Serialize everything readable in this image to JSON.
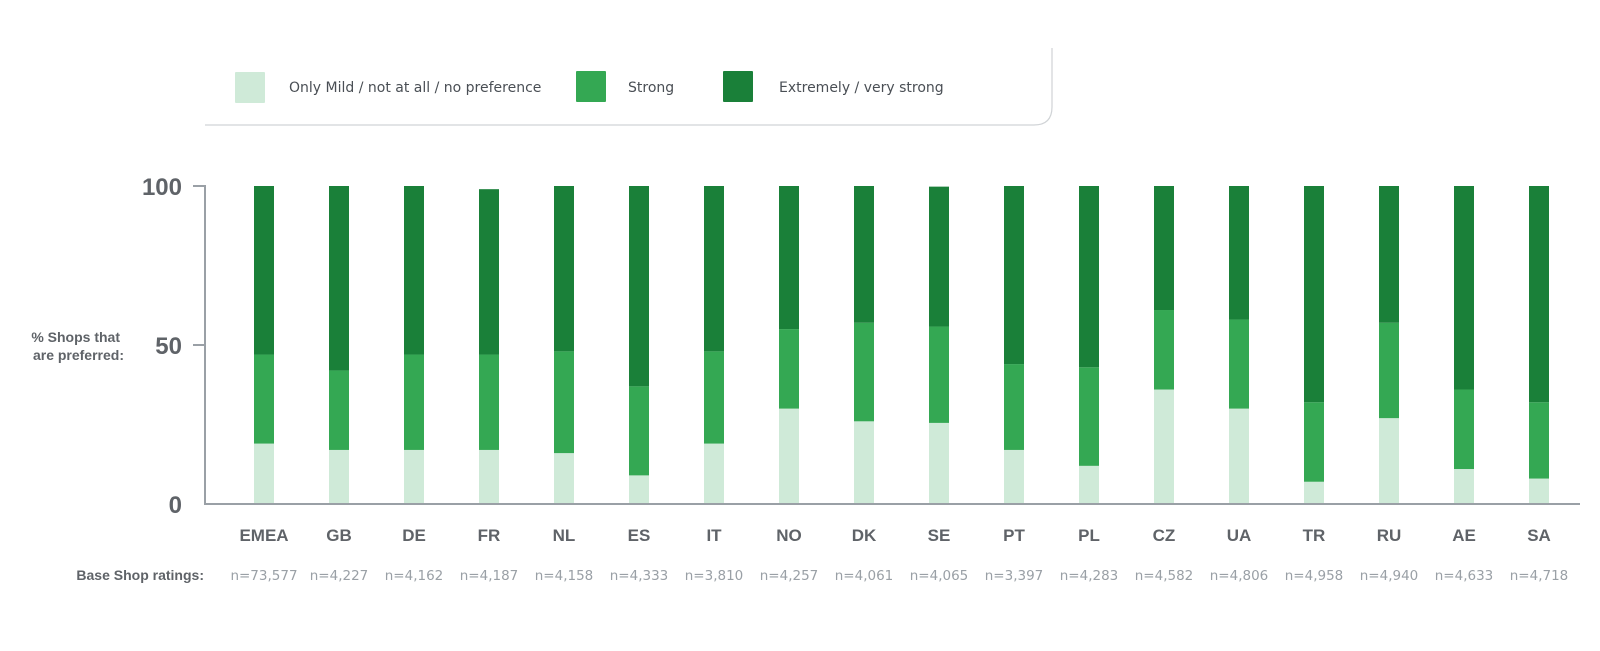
{
  "legend": {
    "items": [
      {
        "label": "Only Mild / not at all / no preference",
        "color": "#cfead8"
      },
      {
        "label": "Strong",
        "color": "#34a853"
      },
      {
        "label": "Extremely / very strong",
        "color": "#1a8039"
      }
    ]
  },
  "base_label": "Base Shop ratings:",
  "chart_data": {
    "type": "bar",
    "stacked": true,
    "ylabel": "% Shops that are preferred:",
    "ylabel_lines": [
      "% Shops that",
      "are preferred:"
    ],
    "ylim": [
      0,
      100
    ],
    "yticks": [
      "0",
      "50",
      "100"
    ],
    "categories": [
      "EMEA",
      "GB",
      "DE",
      "FR",
      "NL",
      "ES",
      "IT",
      "NO",
      "DK",
      "SE",
      "PT",
      "PL",
      "CZ",
      "UA",
      "TR",
      "RU",
      "AE",
      "SA"
    ],
    "series": [
      {
        "name": "Only Mild / not at all / no preference",
        "color": "#cfead8",
        "values": [
          19,
          17,
          17,
          17,
          16,
          9,
          19,
          30,
          26,
          25.5,
          17,
          12,
          36,
          30,
          7,
          27,
          11,
          8
        ]
      },
      {
        "name": "Strong",
        "color": "#34a853",
        "values": [
          28,
          25,
          30,
          30,
          32,
          28,
          29,
          25,
          31,
          30.3,
          27,
          31,
          25,
          28,
          25,
          30,
          25,
          24
        ]
      },
      {
        "name": "Extremely / very strong",
        "color": "#1a8039",
        "values": [
          53,
          58,
          53,
          52,
          52,
          63,
          52,
          45,
          43,
          44,
          56,
          57,
          39,
          42,
          68,
          43,
          64,
          68
        ]
      }
    ],
    "base_counts": [
      "n=73,577",
      "n=4,227",
      "n=4,162",
      "n=4,187",
      "n=4,158",
      "n=4,333",
      "n=3,810",
      "n=4,257",
      "n=4,061",
      "n=4,065",
      "n=3,397",
      "n=4,283",
      "n=4,582",
      "n=4,806",
      "n=4,958",
      "n=4,940",
      "n=4,633",
      "n=4,718"
    ]
  }
}
